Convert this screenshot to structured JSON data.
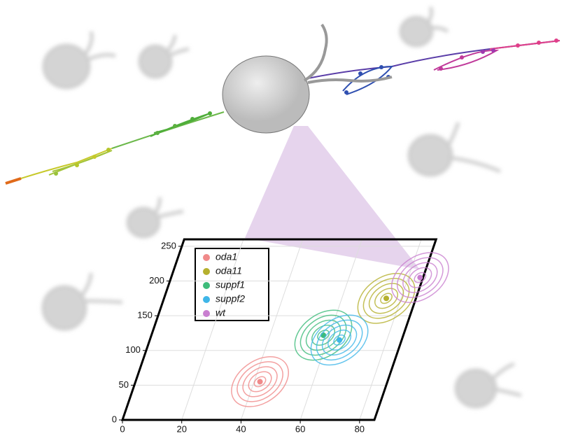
{
  "chart_data": {
    "type": "scatter",
    "xlim": [
      0,
      85
    ],
    "xticks": [
      0,
      20,
      40,
      60,
      80
    ],
    "ylim": [
      0,
      260
    ],
    "yticks": [
      0,
      50,
      100,
      150,
      200,
      250
    ],
    "grid": true,
    "legend": "upper left",
    "series": [
      {
        "name": "oda1",
        "color": "#f08a8a",
        "x": [
          42
        ],
        "values": [
          55
        ]
      },
      {
        "name": "oda11",
        "color": "#b5b02e",
        "x": [
          75
        ],
        "values": [
          175
        ]
      },
      {
        "name": "suppf1",
        "color": "#3dbb7a",
        "x": [
          58
        ],
        "values": [
          122
        ]
      },
      {
        "name": "suppf2",
        "color": "#3fb6e8",
        "x": [
          64
        ],
        "values": [
          115
        ]
      },
      {
        "name": "wt",
        "color": "#c97fd0",
        "x": [
          84
        ],
        "values": [
          205
        ]
      }
    ]
  }
}
